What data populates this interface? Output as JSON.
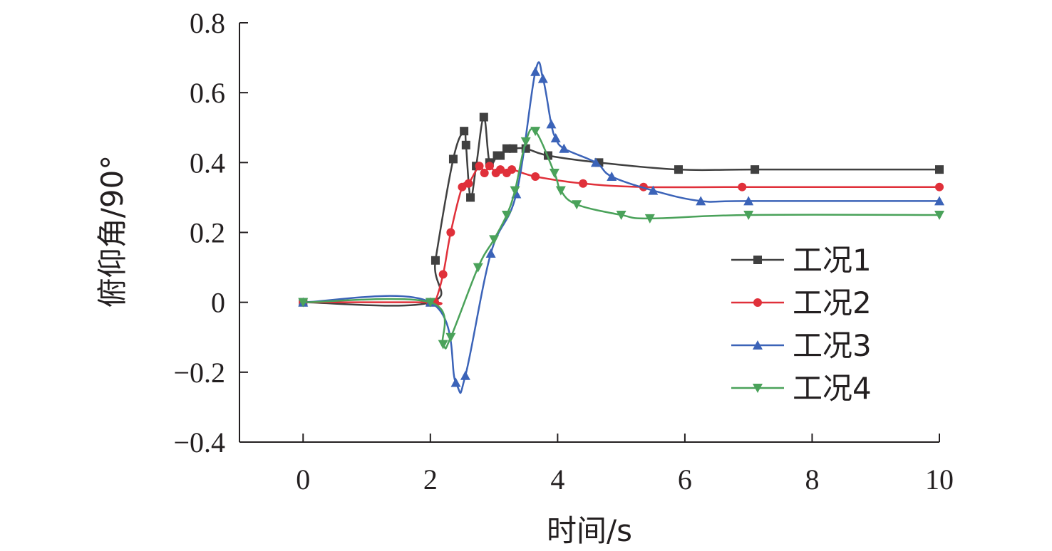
{
  "chart_data": {
    "type": "line",
    "xlabel": "时间/s",
    "ylabel": "俯仰角/90°",
    "xlim": [
      -1,
      10
    ],
    "ylim": [
      -0.4,
      0.8
    ],
    "x_ticks": [
      0,
      2,
      4,
      6,
      8,
      10
    ],
    "x_tick_labels": [
      "0",
      "2",
      "4",
      "6",
      "8",
      "10"
    ],
    "y_ticks": [
      -0.4,
      -0.2,
      0,
      0.2,
      0.4,
      0.6,
      0.8
    ],
    "y_tick_labels": [
      "−0.4",
      "−0.2",
      "0",
      "0.2",
      "0.4",
      "0.6",
      "0.8"
    ],
    "grid": false,
    "legend_position": "right",
    "series": [
      {
        "name": "工况1",
        "color": "#404040",
        "marker": "square",
        "points": [
          [
            0,
            0
          ],
          [
            2,
            0
          ],
          [
            2.08,
            0.12
          ],
          [
            2.36,
            0.41
          ],
          [
            2.53,
            0.49
          ],
          [
            2.56,
            0.45
          ],
          [
            2.63,
            0.3
          ],
          [
            2.72,
            0.39
          ],
          [
            2.84,
            0.53
          ],
          [
            2.93,
            0.4
          ],
          [
            3.05,
            0.42
          ],
          [
            3.1,
            0.42
          ],
          [
            3.2,
            0.44
          ],
          [
            3.3,
            0.44
          ],
          [
            3.5,
            0.44
          ],
          [
            3.85,
            0.42
          ],
          [
            4.65,
            0.4
          ],
          [
            5.9,
            0.38
          ],
          [
            7.1,
            0.38
          ],
          [
            10,
            0.38
          ]
        ]
      },
      {
        "name": "工况2",
        "color": "#e0303a",
        "marker": "circle",
        "points": [
          [
            0,
            0
          ],
          [
            2,
            0
          ],
          [
            2.07,
            0
          ],
          [
            2.2,
            0.08
          ],
          [
            2.32,
            0.2
          ],
          [
            2.5,
            0.33
          ],
          [
            2.6,
            0.34
          ],
          [
            2.77,
            0.39
          ],
          [
            2.85,
            0.37
          ],
          [
            2.93,
            0.39
          ],
          [
            3.03,
            0.37
          ],
          [
            3.1,
            0.38
          ],
          [
            3.2,
            0.37
          ],
          [
            3.28,
            0.38
          ],
          [
            3.65,
            0.36
          ],
          [
            4.4,
            0.34
          ],
          [
            5.35,
            0.33
          ],
          [
            6.9,
            0.33
          ],
          [
            10,
            0.33
          ]
        ]
      },
      {
        "name": "工况3",
        "color": "#3b63b8",
        "marker": "triangle-up",
        "points": [
          [
            0,
            0
          ],
          [
            2,
            0
          ],
          [
            2.4,
            -0.23
          ],
          [
            2.55,
            -0.21
          ],
          [
            2.95,
            0.14
          ],
          [
            3.35,
            0.31
          ],
          [
            3.65,
            0.66
          ],
          [
            3.77,
            0.64
          ],
          [
            3.9,
            0.51
          ],
          [
            3.97,
            0.47
          ],
          [
            4.1,
            0.44
          ],
          [
            4.6,
            0.4
          ],
          [
            4.85,
            0.36
          ],
          [
            5.5,
            0.32
          ],
          [
            6.25,
            0.29
          ],
          [
            7.0,
            0.29
          ],
          [
            10,
            0.29
          ]
        ]
      },
      {
        "name": "工况4",
        "color": "#4aa25a",
        "marker": "triangle-down",
        "points": [
          [
            0,
            0
          ],
          [
            2,
            0
          ],
          [
            2.2,
            -0.12
          ],
          [
            2.32,
            -0.1
          ],
          [
            2.75,
            0.1
          ],
          [
            3.0,
            0.18
          ],
          [
            3.2,
            0.25
          ],
          [
            3.33,
            0.32
          ],
          [
            3.5,
            0.46
          ],
          [
            3.65,
            0.49
          ],
          [
            3.95,
            0.37
          ],
          [
            4.05,
            0.32
          ],
          [
            4.3,
            0.28
          ],
          [
            5.0,
            0.25
          ],
          [
            5.45,
            0.24
          ],
          [
            7.0,
            0.25
          ],
          [
            10,
            0.25
          ]
        ]
      }
    ]
  }
}
